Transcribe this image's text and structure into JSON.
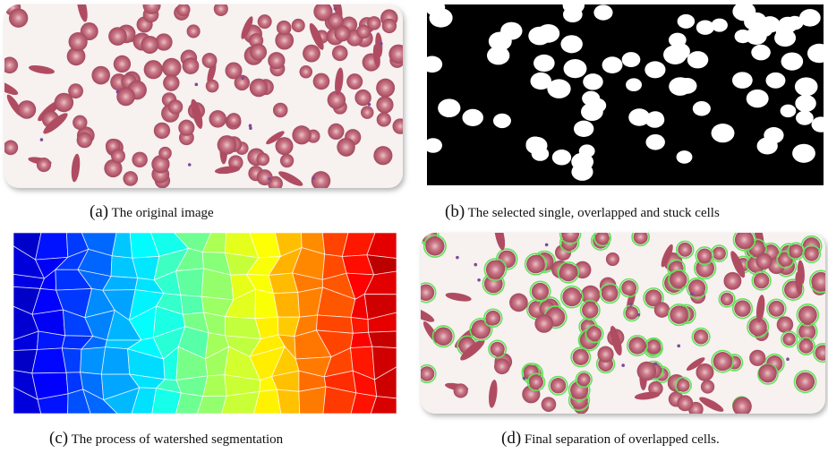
{
  "panels": [
    {
      "label": "(a)",
      "caption": "The original image"
    },
    {
      "label": "(b)",
      "caption": "The selected single, overlapped and stuck cells"
    },
    {
      "label": "(c)",
      "caption": "The process of watershed segmentation"
    },
    {
      "label": "(d)",
      "caption": "Final separation of overlapped cells."
    }
  ]
}
